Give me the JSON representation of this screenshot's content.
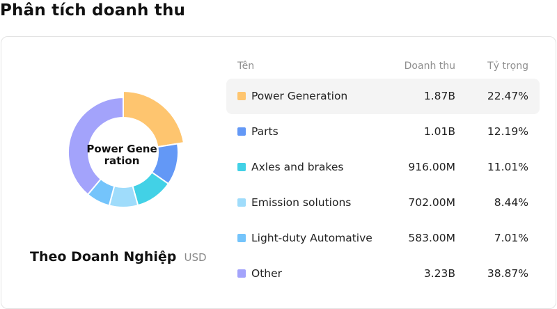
{
  "page": {
    "title": "Phân tích doanh thu"
  },
  "donut": {
    "center_label": "Power Generation",
    "caption_title": "Theo Doanh Nghiệp",
    "caption_unit": "USD",
    "highlight_index": 0
  },
  "table": {
    "headers": {
      "name": "Tên",
      "revenue": "Doanh thu",
      "share": "Tỷ trọng"
    },
    "rows": [
      {
        "name": "Power Generation",
        "revenue": "1.87B",
        "share": "22.47%",
        "color": "#fec56f"
      },
      {
        "name": "Parts",
        "revenue": "1.01B",
        "share": "12.19%",
        "color": "#6398f6"
      },
      {
        "name": "Axles and brakes",
        "revenue": "916.00M",
        "share": "11.01%",
        "color": "#42d1e6"
      },
      {
        "name": "Emission solutions",
        "revenue": "702.00M",
        "share": "8.44%",
        "color": "#9fdcfb"
      },
      {
        "name": "Light-duty Automative",
        "revenue": "583.00M",
        "share": "7.01%",
        "color": "#74c4fb"
      },
      {
        "name": "Other",
        "revenue": "3.23B",
        "share": "38.87%",
        "color": "#a3a3fb"
      }
    ]
  },
  "chart_data": {
    "type": "pie",
    "categories": [
      "Power Generation",
      "Parts",
      "Axles and brakes",
      "Emission solutions",
      "Light-duty Automative",
      "Other"
    ],
    "values": [
      22.47,
      12.19,
      11.01,
      8.44,
      7.01,
      38.87
    ],
    "colors": [
      "#fec56f",
      "#6398f6",
      "#42d1e6",
      "#9fdcfb",
      "#74c4fb",
      "#a3a3fb"
    ],
    "hole": true
  }
}
